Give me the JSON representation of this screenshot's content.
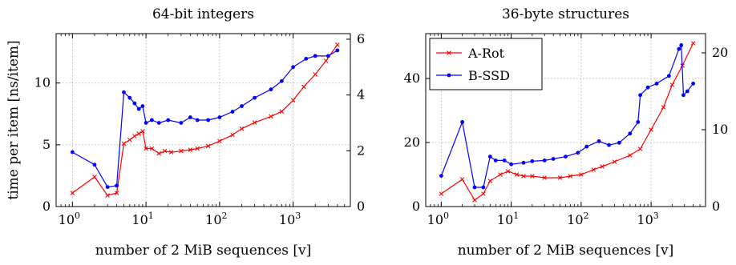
{
  "chart_data": [
    {
      "type": "line",
      "title": "64-bit integers",
      "xlabel": "number of 2 MiB sequences [v]",
      "ylabel": "time per item [ns/item]",
      "x_scale": "log",
      "xlim": [
        0.6,
        6000
      ],
      "xticks": [
        {
          "base": "10",
          "exp": "0",
          "value": 1
        },
        {
          "base": "10",
          "exp": "1",
          "value": 10
        },
        {
          "base": "10",
          "exp": "2",
          "value": 100
        },
        {
          "base": "10",
          "exp": "3",
          "value": 1000
        }
      ],
      "ylim_left": [
        0,
        14
      ],
      "yticks_left": [
        "0",
        "5",
        "10"
      ],
      "ylim_right": [
        0,
        6.2
      ],
      "yticks_right": [
        "0",
        "2",
        "4",
        "6"
      ],
      "grid": true,
      "series": [
        {
          "name": "A-Rot",
          "axis": "left",
          "color": "#ff0000",
          "marker": "x",
          "points": [
            [
              1,
              1.1
            ],
            [
              2,
              2.4
            ],
            [
              3,
              0.9
            ],
            [
              4,
              1.1
            ],
            [
              5,
              5.1
            ],
            [
              6,
              5.4
            ],
            [
              7,
              5.7
            ],
            [
              8,
              5.9
            ],
            [
              9,
              6.1
            ],
            [
              10,
              4.7
            ],
            [
              12,
              4.7
            ],
            [
              15,
              4.3
            ],
            [
              18,
              4.5
            ],
            [
              22,
              4.4
            ],
            [
              30,
              4.5
            ],
            [
              40,
              4.6
            ],
            [
              50,
              4.7
            ],
            [
              70,
              4.9
            ],
            [
              100,
              5.3
            ],
            [
              150,
              5.8
            ],
            [
              200,
              6.3
            ],
            [
              300,
              6.8
            ],
            [
              500,
              7.3
            ],
            [
              700,
              7.7
            ],
            [
              1000,
              8.6
            ],
            [
              1400,
              9.7
            ],
            [
              2000,
              10.7
            ],
            [
              2800,
              11.8
            ],
            [
              4000,
              13.1
            ]
          ]
        },
        {
          "name": "B-SSD",
          "axis": "right",
          "color": "#0000ff",
          "marker": "o",
          "points": [
            [
              1,
              1.95
            ],
            [
              2,
              1.5
            ],
            [
              3,
              0.7
            ],
            [
              4,
              0.75
            ],
            [
              5,
              4.1
            ],
            [
              6,
              3.9
            ],
            [
              7,
              3.7
            ],
            [
              8,
              3.5
            ],
            [
              9,
              3.6
            ],
            [
              10,
              3.0
            ],
            [
              12,
              3.1
            ],
            [
              15,
              3.0
            ],
            [
              20,
              3.1
            ],
            [
              30,
              3.0
            ],
            [
              40,
              3.2
            ],
            [
              50,
              3.1
            ],
            [
              70,
              3.1
            ],
            [
              100,
              3.2
            ],
            [
              150,
              3.4
            ],
            [
              200,
              3.6
            ],
            [
              300,
              3.9
            ],
            [
              500,
              4.2
            ],
            [
              700,
              4.5
            ],
            [
              1000,
              5.0
            ],
            [
              1500,
              5.3
            ],
            [
              2000,
              5.4
            ],
            [
              3000,
              5.4
            ],
            [
              4000,
              5.6
            ]
          ]
        }
      ]
    },
    {
      "type": "line",
      "title": "36-byte structures",
      "xlabel": "number of 2 MiB sequences [v]",
      "ylabel": "",
      "x_scale": "log",
      "xlim": [
        0.6,
        6000
      ],
      "xticks": [
        {
          "base": "10",
          "exp": "0",
          "value": 1
        },
        {
          "base": "10",
          "exp": "1",
          "value": 10
        },
        {
          "base": "10",
          "exp": "2",
          "value": 100
        },
        {
          "base": "10",
          "exp": "3",
          "value": 1000
        }
      ],
      "ylim_left": [
        0,
        54
      ],
      "yticks_left": [
        "0",
        "20",
        "40"
      ],
      "ylim_right": [
        0,
        22.5
      ],
      "yticks_right": [
        "0",
        "10",
        "20"
      ],
      "grid": true,
      "legend_position": "top-left",
      "series": [
        {
          "name": "A-Rot",
          "axis": "left",
          "color": "#ff0000",
          "marker": "x",
          "points": [
            [
              1,
              4.0
            ],
            [
              2,
              8.5
            ],
            [
              3,
              2.0
            ],
            [
              4,
              4.0
            ],
            [
              5,
              8.0
            ],
            [
              7,
              10.0
            ],
            [
              9,
              11.0
            ],
            [
              12,
              10.0
            ],
            [
              15,
              9.5
            ],
            [
              20,
              9.5
            ],
            [
              30,
              9.0
            ],
            [
              50,
              9.0
            ],
            [
              70,
              9.5
            ],
            [
              100,
              10.0
            ],
            [
              150,
              11.5
            ],
            [
              200,
              12.5
            ],
            [
              300,
              14.0
            ],
            [
              500,
              16.0
            ],
            [
              700,
              18.0
            ],
            [
              1000,
              24.0
            ],
            [
              1500,
              31.0
            ],
            [
              2000,
              38.0
            ],
            [
              2800,
              44.0
            ],
            [
              4000,
              51.0
            ]
          ]
        },
        {
          "name": "B-SSD",
          "axis": "right",
          "color": "#0000ff",
          "marker": "o",
          "points": [
            [
              1,
              4.0
            ],
            [
              2,
              11.0
            ],
            [
              3,
              2.5
            ],
            [
              4,
              2.5
            ],
            [
              5,
              6.5
            ],
            [
              6,
              6.0
            ],
            [
              8,
              6.0
            ],
            [
              10,
              5.5
            ],
            [
              15,
              5.7
            ],
            [
              20,
              5.9
            ],
            [
              30,
              6.0
            ],
            [
              40,
              6.2
            ],
            [
              60,
              6.5
            ],
            [
              90,
              7.0
            ],
            [
              120,
              7.8
            ],
            [
              180,
              8.5
            ],
            [
              250,
              8.0
            ],
            [
              350,
              8.3
            ],
            [
              500,
              9.5
            ],
            [
              650,
              11.0
            ],
            [
              700,
              14.5
            ],
            [
              900,
              15.5
            ],
            [
              1200,
              16.0
            ],
            [
              1800,
              17.0
            ],
            [
              2500,
              20.5
            ],
            [
              2700,
              21.0
            ],
            [
              2900,
              14.5
            ],
            [
              3300,
              15.0
            ],
            [
              4000,
              16.0
            ]
          ]
        }
      ]
    }
  ]
}
